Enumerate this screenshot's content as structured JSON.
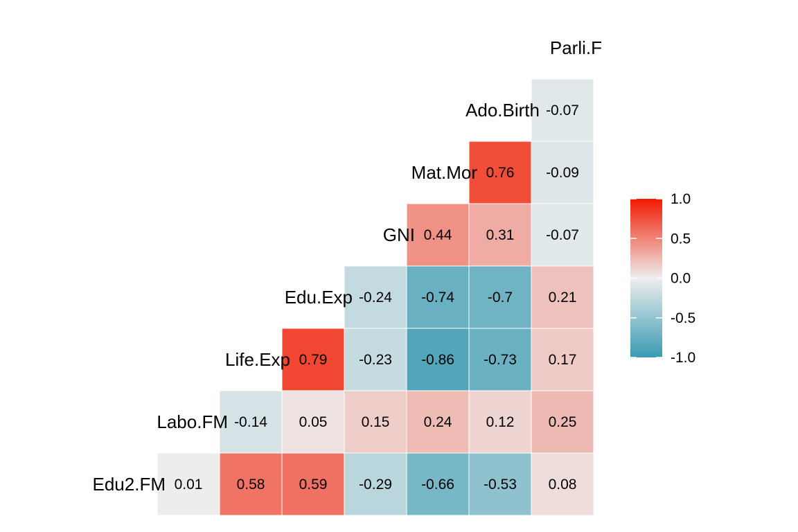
{
  "chart_data": {
    "type": "heatmap",
    "variables": [
      "Edu2.FM",
      "Labo.FM",
      "Life.Exp",
      "Edu.Exp",
      "GNI",
      "Mat.Mor",
      "Ado.Birth",
      "Parli.F"
    ],
    "cells": [
      {
        "row": "Edu2.FM",
        "col": "Edu2.FM",
        "value": 0.01,
        "label": "0.01"
      },
      {
        "row": "Edu2.FM",
        "col": "Labo.FM",
        "value": 0.58,
        "label": "0.58"
      },
      {
        "row": "Edu2.FM",
        "col": "Life.Exp",
        "value": 0.59,
        "label": "0.59"
      },
      {
        "row": "Edu2.FM",
        "col": "Edu.Exp",
        "value": -0.29,
        "label": "-0.29"
      },
      {
        "row": "Edu2.FM",
        "col": "GNI",
        "value": -0.66,
        "label": "-0.66"
      },
      {
        "row": "Edu2.FM",
        "col": "Mat.Mor",
        "value": -0.53,
        "label": "-0.53"
      },
      {
        "row": "Edu2.FM",
        "col": "Ado.Birth",
        "value": 0.08,
        "label": "0.08"
      },
      {
        "row": "Labo.FM",
        "col": "Labo.FM",
        "value": -0.14,
        "label": "-0.14"
      },
      {
        "row": "Labo.FM",
        "col": "Life.Exp",
        "value": 0.05,
        "label": "0.05"
      },
      {
        "row": "Labo.FM",
        "col": "Edu.Exp",
        "value": 0.15,
        "label": "0.15"
      },
      {
        "row": "Labo.FM",
        "col": "GNI",
        "value": 0.24,
        "label": "0.24"
      },
      {
        "row": "Labo.FM",
        "col": "Mat.Mor",
        "value": 0.12,
        "label": "0.12"
      },
      {
        "row": "Labo.FM",
        "col": "Ado.Birth",
        "value": 0.25,
        "label": "0.25"
      },
      {
        "row": "Life.Exp",
        "col": "Life.Exp",
        "value": 0.79,
        "label": "0.79"
      },
      {
        "row": "Life.Exp",
        "col": "Edu.Exp",
        "value": -0.23,
        "label": "-0.23"
      },
      {
        "row": "Life.Exp",
        "col": "GNI",
        "value": -0.86,
        "label": "-0.86"
      },
      {
        "row": "Life.Exp",
        "col": "Mat.Mor",
        "value": -0.73,
        "label": "-0.73"
      },
      {
        "row": "Life.Exp",
        "col": "Ado.Birth",
        "value": 0.17,
        "label": "0.17"
      },
      {
        "row": "Edu.Exp",
        "col": "Edu.Exp",
        "value": -0.24,
        "label": "-0.24"
      },
      {
        "row": "Edu.Exp",
        "col": "GNI",
        "value": -0.74,
        "label": "-0.74"
      },
      {
        "row": "Edu.Exp",
        "col": "Mat.Mor",
        "value": -0.7,
        "label": "-0.7"
      },
      {
        "row": "Edu.Exp",
        "col": "Ado.Birth",
        "value": 0.21,
        "label": "0.21"
      },
      {
        "row": "GNI",
        "col": "GNI",
        "value": 0.44,
        "label": "0.44"
      },
      {
        "row": "GNI",
        "col": "Mat.Mor",
        "value": 0.31,
        "label": "0.31"
      },
      {
        "row": "GNI",
        "col": "Ado.Birth",
        "value": -0.07,
        "label": "-0.07"
      },
      {
        "row": "Mat.Mor",
        "col": "Mat.Mor",
        "value": 0.76,
        "label": "0.76"
      },
      {
        "row": "Mat.Mor",
        "col": "Ado.Birth",
        "value": -0.09,
        "label": "-0.09"
      },
      {
        "row": "Ado.Birth",
        "col": "Ado.Birth",
        "value": -0.07,
        "label": "-0.07"
      }
    ],
    "color_scale": {
      "low": "#3A9AB2",
      "mid": "#EEEEEE",
      "high": "#F21A00",
      "limits": [
        -1,
        1
      ],
      "midpoint": 0
    },
    "legend": {
      "position": "right",
      "ticks": [
        "1.0",
        "0.5",
        "0.0",
        "-0.5",
        "-1.0"
      ],
      "tick_values": [
        1.0,
        0.5,
        0.0,
        -0.5,
        -1.0
      ]
    },
    "grid": false
  }
}
